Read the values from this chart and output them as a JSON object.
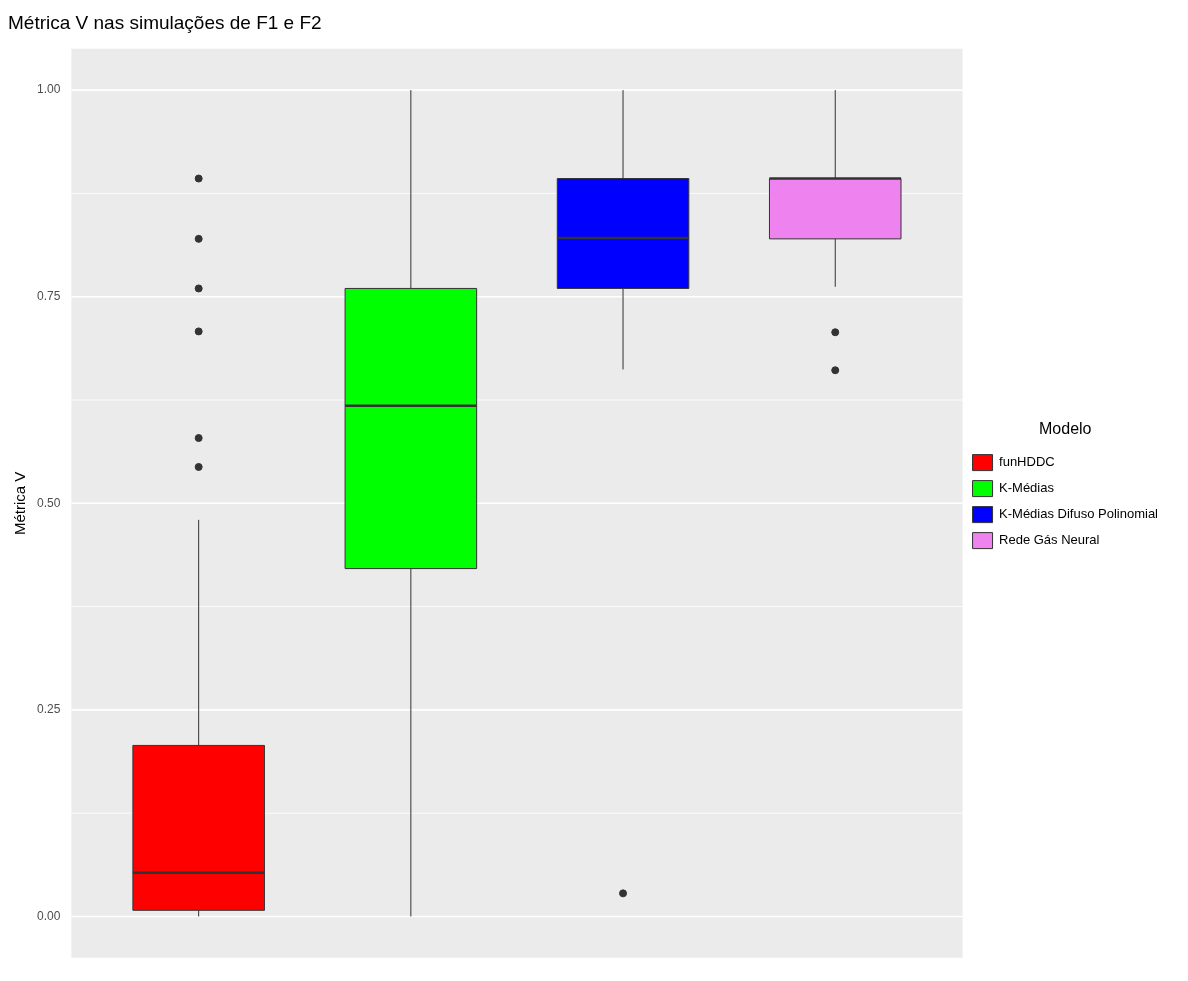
{
  "chart_data": {
    "type": "box",
    "title": "Métrica V nas simulações de F1 e F2",
    "ylabel": "Métrica V",
    "legend_title": "Modelo",
    "categories": [
      null,
      null,
      null,
      null
    ],
    "series": [
      {
        "name": "funHDDC",
        "color": "#ff0000",
        "boxes": [
          {
            "low": 0,
            "q1": 0.0075,
            "median": 0.053,
            "q3": 0.207,
            "high": 0.48,
            "outliers": [
              0.893,
              0.82,
              0.76,
              0.708,
              0.579,
              0.544
            ]
          },
          null,
          null,
          null
        ]
      },
      {
        "name": "K-Médias",
        "color": "#00ff00",
        "boxes": [
          null,
          {
            "low": 0,
            "q1": 0.421,
            "median": 0.618,
            "q3": 0.76,
            "high": 1.0
          },
          null,
          null
        ]
      },
      {
        "name": "K-Médias Difuso Polinomial",
        "color": "#0000ff",
        "boxes": [
          null,
          null,
          {
            "low": 0.662,
            "q1": 0.76,
            "median": 0.821,
            "q3": 0.893,
            "high": 1.0,
            "outliers": [
              0.028
            ]
          },
          null
        ]
      },
      {
        "name": "Rede Gás Neural",
        "color": "#ee82ee",
        "boxes": [
          null,
          null,
          null,
          {
            "low": 0.762,
            "q1": 0.82,
            "median": 0.893,
            "q3": 0.893,
            "high": 1.0,
            "outliers": [
              0.707,
              0.661
            ]
          }
        ]
      }
    ],
    "ylim": [
      -0.05,
      1.05
    ],
    "yticks": [
      {
        "value": 0,
        "label": "0.00"
      },
      {
        "value": 0.25,
        "label": "0.25"
      },
      {
        "value": 0.5,
        "label": "0.50"
      },
      {
        "value": 0.75,
        "label": "0.75"
      },
      {
        "value": 1,
        "label": "1.00"
      }
    ],
    "grid": "y",
    "legend": "right",
    "tick_labels": "y"
  }
}
